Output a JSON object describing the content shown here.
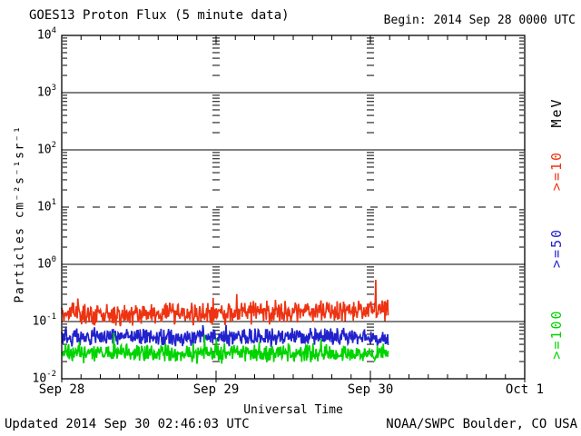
{
  "title": "GOES13 Proton Flux (5 minute data)",
  "begin_label": "Begin: 2014 Sep 28 0000 UTC",
  "footer": {
    "updated": "Updated 2014 Sep 30 02:46:03 UTC",
    "source": "NOAA/SWPC Boulder, CO USA"
  },
  "chart_data": {
    "type": "line",
    "title": "GOES13 Proton Flux (5 minute data)",
    "xlabel": "Universal Time",
    "ylabel": "Particles cm⁻²s⁻¹sr⁻¹",
    "x_ticks": [
      "Sep 28",
      "Sep 29",
      "Sep 30",
      "Oct 1"
    ],
    "x_range_days": 3,
    "y_exponents": [
      4,
      3,
      2,
      1,
      0,
      -1,
      -2
    ],
    "ylim": [
      0.01,
      10000
    ],
    "grid": {
      "solid_exponents": [
        3,
        2,
        0,
        -1
      ],
      "dashed_exponents": [
        1
      ]
    },
    "sample_interval_minutes": 5,
    "data_end_day_fraction": 0.705,
    "seed": 20140928,
    "series": [
      {
        "name": ">=10 MeV",
        "color": "#ee3312",
        "log10_mean": -0.89,
        "log10_spread": 0.23,
        "end_trend_log10": 0.08,
        "spike_prob": 0.04,
        "spike_log10": 0.33,
        "final_spike_log10": -0.27,
        "log10_min": -1.13,
        "log10_max": -0.25,
        "approx_flux_range": [
          0.08,
          0.45
        ]
      },
      {
        "name": ">=50 MeV",
        "color": "#2222cc",
        "log10_mean": -1.27,
        "log10_spread": 0.18,
        "end_trend_log10": 0.0,
        "spike_prob": 0.03,
        "spike_log10": 0.18,
        "final_spike_log10": null,
        "log10_min": -1.47,
        "log10_max": -1.0,
        "approx_flux_range": [
          0.035,
          0.09
        ]
      },
      {
        "name": ">=100 MeV",
        "color": "#00d400",
        "log10_mean": -1.56,
        "log10_spread": 0.19,
        "end_trend_log10": 0.0,
        "spike_prob": 0.06,
        "spike_log10": 0.26,
        "final_spike_log10": null,
        "log10_min": -1.79,
        "log10_max": -1.15,
        "approx_flux_range": [
          0.016,
          0.06
        ]
      }
    ],
    "right_axis_labels": [
      {
        "text": "MeV",
        "color": "#000000"
      },
      {
        "text": ">=10",
        "color": "#ee3312"
      },
      {
        "text": ">=50",
        "color": "#2222cc"
      },
      {
        "text": ">=100",
        "color": "#00d400"
      }
    ],
    "legend_position": "right",
    "background": "#ffffff",
    "axis_color": "#000000"
  }
}
